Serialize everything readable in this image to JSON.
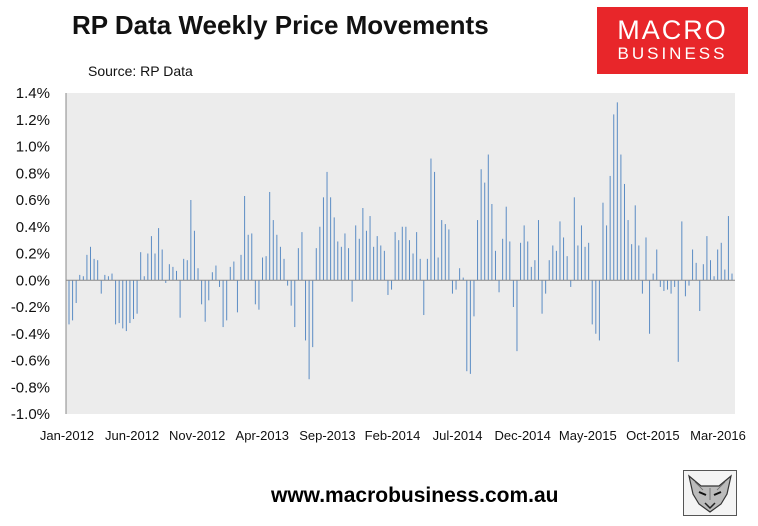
{
  "header": {
    "title": "RP Data Weekly Price Movements",
    "source": "Source: RP Data"
  },
  "logo": {
    "line1": "MACRO",
    "line2": "BUSINESS",
    "icon": "fox-icon"
  },
  "footer": {
    "url": "www.macrobusiness.com.au"
  },
  "colors": {
    "bar": "#5b8cc4",
    "plot_bg": "#ececec",
    "axis": "#888888",
    "brand": "#e8262a"
  },
  "chart_data": {
    "type": "bar",
    "title": "RP Data Weekly Price Movements",
    "xlabel": "",
    "ylabel": "",
    "ylim": [
      -1.0,
      1.4
    ],
    "y_ticks": [
      "1.4%",
      "1.2%",
      "1.0%",
      "0.8%",
      "0.6%",
      "0.4%",
      "0.2%",
      "0.0%",
      "-0.2%",
      "-0.4%",
      "-0.6%",
      "-0.8%",
      "-1.0%"
    ],
    "x_ticks": [
      "Jan-2012",
      "Jun-2012",
      "Nov-2012",
      "Apr-2013",
      "Sep-2013",
      "Feb-2014",
      "Jul-2014",
      "Dec-2014",
      "May-2015",
      "Oct-2015",
      "Mar-2016"
    ],
    "grid": false,
    "series": [
      {
        "values": [
          -0.33,
          -0.3,
          -0.17,
          0.04,
          0.03,
          0.19,
          0.25,
          0.16,
          0.15,
          -0.1,
          0.04,
          0.03,
          0.05,
          -0.33,
          -0.32,
          -0.36,
          -0.38,
          -0.32,
          -0.29,
          -0.25,
          0.21,
          0.03,
          0.2,
          0.33,
          0.2,
          0.39,
          0.23,
          -0.02,
          0.12,
          0.1,
          0.07,
          -0.28,
          0.16,
          0.15,
          0.6,
          0.37,
          0.09,
          -0.18,
          -0.31,
          -0.15,
          0.06,
          0.11,
          -0.05,
          -0.35,
          -0.3,
          0.1,
          0.14,
          -0.24,
          0.19,
          0.63,
          0.34,
          0.35,
          -0.18,
          -0.22,
          0.17,
          0.18,
          0.66,
          0.45,
          0.34,
          0.25,
          0.16,
          -0.04,
          -0.19,
          -0.35,
          0.24,
          0.36,
          -0.45,
          -0.74,
          -0.5,
          0.24,
          0.4,
          0.62,
          0.81,
          0.62,
          0.47,
          0.29,
          0.25,
          0.35,
          0.24,
          -0.16,
          0.41,
          0.31,
          0.54,
          0.37,
          0.48,
          0.25,
          0.33,
          0.26,
          0.22,
          -0.11,
          -0.07,
          0.36,
          0.3,
          0.4,
          0.4,
          0.3,
          0.2,
          0.36,
          0.16,
          -0.26,
          0.16,
          0.91,
          0.81,
          0.17,
          0.45,
          0.42,
          0.38,
          -0.1,
          -0.07,
          0.09,
          0.02,
          -0.68,
          -0.7,
          -0.27,
          0.45,
          0.83,
          0.73,
          0.94,
          0.57,
          0.22,
          -0.09,
          0.31,
          0.55,
          0.29,
          -0.2,
          -0.53,
          0.28,
          0.41,
          0.29,
          0.1,
          0.15,
          0.45,
          -0.25,
          -0.1,
          0.15,
          0.26,
          0.22,
          0.44,
          0.32,
          0.18,
          -0.05,
          0.62,
          0.26,
          0.41,
          0.25,
          0.28,
          -0.33,
          -0.4,
          -0.45,
          0.58,
          0.41,
          0.78,
          1.24,
          1.33,
          0.94,
          0.72,
          0.45,
          0.27,
          0.56,
          0.26,
          -0.1,
          0.32,
          -0.4,
          0.05,
          0.23,
          -0.05,
          -0.08,
          -0.07,
          -0.1,
          -0.05,
          -0.61,
          0.44,
          -0.12,
          -0.04,
          0.23,
          0.13,
          -0.23,
          0.12,
          0.33,
          0.15,
          0.03,
          0.23,
          0.28,
          0.08,
          0.48,
          0.05
        ]
      }
    ]
  }
}
